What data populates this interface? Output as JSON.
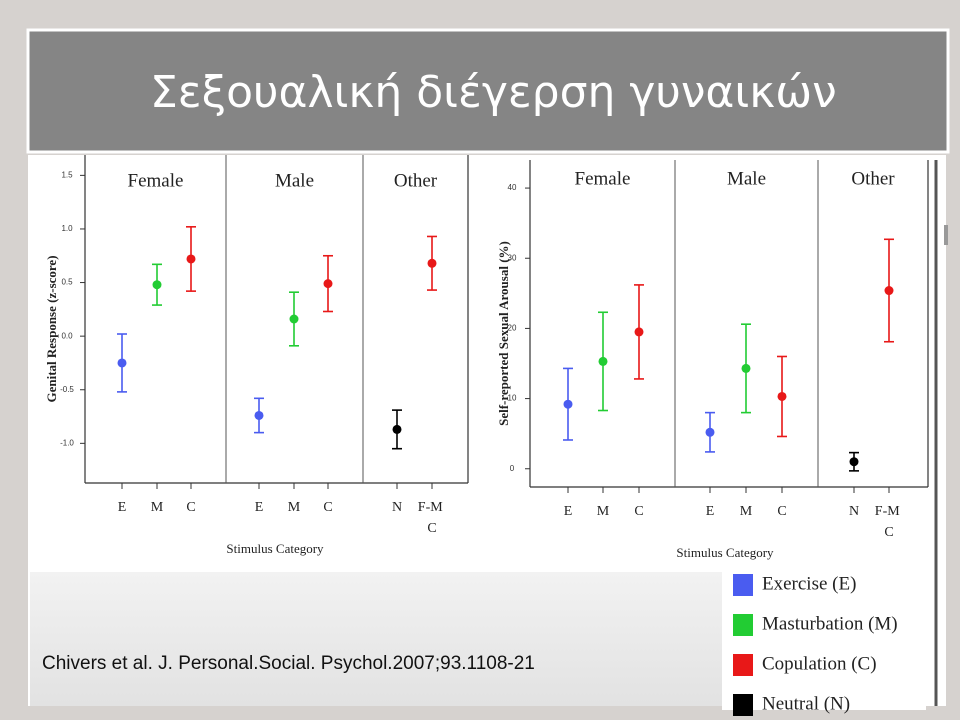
{
  "slide_title": "Σεξουαλική διέγερση γυναικών",
  "citation": "Chivers et al. J. Personal.Social. Psychol.2007;93.1108-21",
  "chart_data": [
    {
      "type": "errorbar",
      "y_label": "Genital Response (z-score)",
      "x_label": "Stimulus Category",
      "groups": [
        {
          "label": "Female",
          "categories": [
            "E",
            "M",
            "C"
          ]
        },
        {
          "label": "Male",
          "categories": [
            "E",
            "M",
            "C"
          ]
        },
        {
          "label": "Other",
          "categories": [
            "N",
            "F-M C"
          ]
        }
      ],
      "ylim": [
        -1.37,
        1.69
      ],
      "yticks": [
        {
          "value": 1.5,
          "label": "1.5"
        },
        {
          "value": 1,
          "label": "1.0"
        },
        0.5,
        {
          "value": 0,
          "label": "0.0"
        },
        -0.5,
        {
          "value": -1,
          "label": "-1.0"
        }
      ],
      "series": [
        {
          "name": "Exercise (E)",
          "color": "#4a5cf0",
          "values": [
            -0.25,
            null,
            null,
            -0.74,
            null,
            null,
            null,
            null
          ],
          "errors": [
            0.27,
            null,
            null,
            0.16,
            null,
            null,
            null,
            null
          ]
        },
        {
          "name": "Masturbation (M)",
          "color": "#22cc33",
          "values": [
            null,
            0.48,
            null,
            null,
            0.16,
            null,
            null,
            null
          ],
          "errors": [
            null,
            0.19,
            null,
            null,
            0.25,
            null,
            null,
            null
          ]
        },
        {
          "name": "Copulation (C)",
          "color": "#e81818",
          "values": [
            null,
            null,
            0.72,
            null,
            null,
            0.49,
            null,
            0.68
          ],
          "errors": [
            null,
            null,
            0.3,
            null,
            null,
            0.26,
            null,
            0.25
          ]
        },
        {
          "name": "Neutral (N)",
          "color": "#000000",
          "values": [
            null,
            null,
            null,
            null,
            null,
            null,
            -0.87,
            null
          ],
          "errors": [
            null,
            null,
            null,
            null,
            null,
            null,
            0.18,
            null
          ]
        }
      ]
    },
    {
      "type": "errorbar",
      "y_label": "Self-reported Sexual Arousal (%)",
      "x_label": "Stimulus Category",
      "groups": [
        {
          "label": "Female",
          "categories": [
            "E",
            "M",
            "C"
          ]
        },
        {
          "label": "Male",
          "categories": [
            "E",
            "M",
            "C"
          ]
        },
        {
          "label": "Other",
          "categories": [
            "N",
            "F-M C"
          ]
        }
      ],
      "ylim": [
        -2.6,
        44
      ],
      "yticks": [
        40,
        30,
        20,
        10,
        0
      ],
      "series": [
        {
          "name": "Exercise (E)",
          "color": "#4a5cf0",
          "values": [
            9.2,
            null,
            null,
            5.2,
            null,
            null,
            null,
            null
          ],
          "errors": [
            5.1,
            null,
            null,
            2.8,
            null,
            null,
            null,
            null
          ]
        },
        {
          "name": "Masturbation (M)",
          "color": "#22cc33",
          "values": [
            null,
            15.3,
            null,
            null,
            14.3,
            null,
            null,
            null
          ],
          "errors": [
            null,
            7,
            null,
            null,
            6.3,
            null,
            null,
            null
          ]
        },
        {
          "name": "Copulation (C)",
          "color": "#e81818",
          "values": [
            null,
            null,
            19.5,
            null,
            null,
            10.3,
            null,
            25.4
          ],
          "errors": [
            null,
            null,
            6.7,
            null,
            null,
            5.7,
            null,
            7.3
          ]
        },
        {
          "name": "Neutral (N)",
          "color": "#000000",
          "values": [
            null,
            null,
            null,
            null,
            null,
            null,
            1,
            null
          ],
          "errors": [
            null,
            null,
            null,
            null,
            null,
            null,
            1.3,
            null
          ]
        }
      ]
    }
  ]
}
